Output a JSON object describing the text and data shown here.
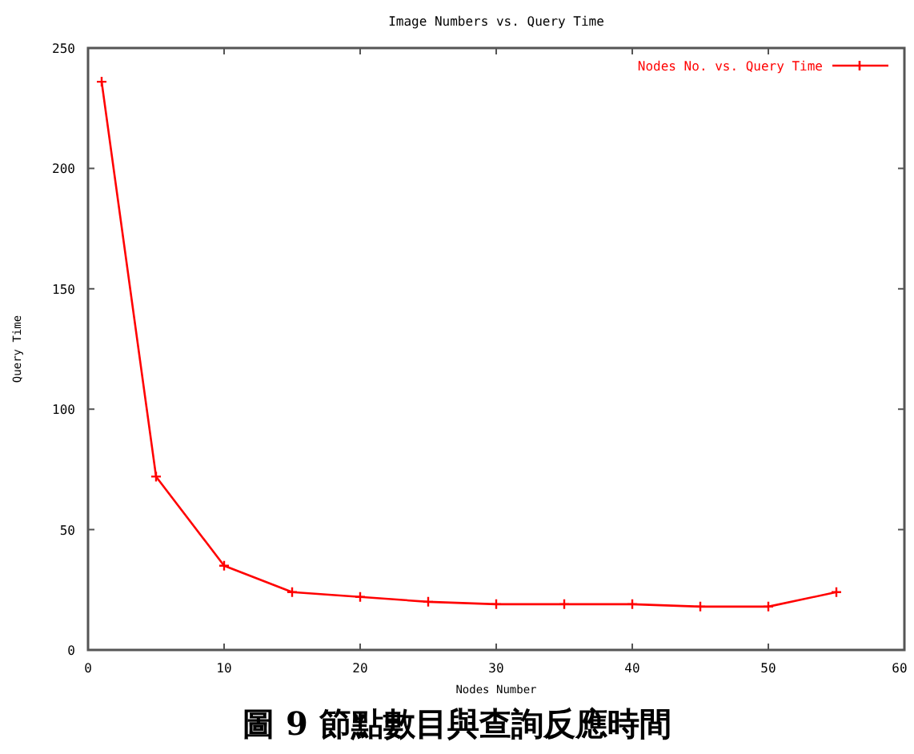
{
  "chart_data": {
    "type": "line",
    "title": "Image Numbers vs. Query Time",
    "xlabel": "Nodes Number",
    "ylabel": "Query Time",
    "x": [
      1,
      5,
      10,
      15,
      20,
      25,
      30,
      35,
      40,
      45,
      50,
      55
    ],
    "series": [
      {
        "name": "Nodes No. vs. Query Time",
        "color": "#ff0000",
        "values": [
          236,
          72,
          35,
          24,
          22,
          20,
          19,
          19,
          19,
          18,
          18,
          24
        ]
      }
    ],
    "xlim": [
      0,
      60
    ],
    "xticks": [
      0,
      10,
      20,
      30,
      40,
      50,
      60
    ],
    "ylim": [
      0,
      250
    ],
    "yticks": [
      0,
      50,
      100,
      150,
      200,
      250
    ],
    "grid": false,
    "legend": "top right",
    "marker": "cross",
    "line_style": "solid",
    "annotations": [
      "圖 9 節點數目與查詢反應時間"
    ]
  }
}
